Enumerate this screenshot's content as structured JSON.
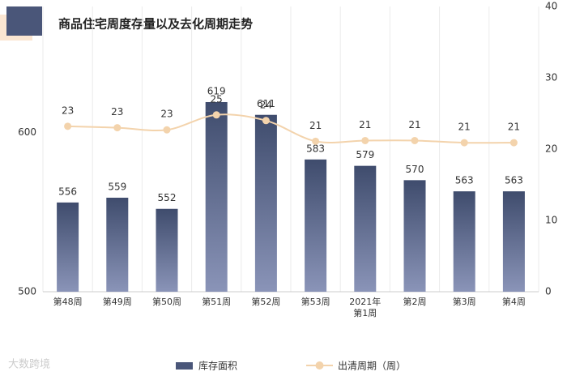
{
  "chart_data": {
    "type": "bar-line",
    "title": "商品住宅周度存量以及去化周期走势",
    "categories": [
      "第48周",
      "第49周",
      "第50周",
      "第51周",
      "第52周",
      "第53周",
      "2021年\n第1周",
      "第2周",
      "第3周",
      "第4周"
    ],
    "series": [
      {
        "name": "库存面积",
        "type": "bar",
        "color": "#44527a",
        "values": [
          556,
          559,
          552,
          619,
          611,
          583,
          579,
          570,
          563,
          563
        ]
      },
      {
        "name": "出清周期（周）",
        "type": "line",
        "axis": "y2",
        "color": "#f3d3ac",
        "values": [
          23.2,
          23.0,
          22.7,
          24.8,
          24.0,
          21.1,
          21.2,
          21.2,
          20.9,
          20.9
        ],
        "value_labels": [
          "23",
          "23",
          "23",
          "25",
          "24",
          "21",
          "21",
          "21",
          "21",
          "21"
        ]
      }
    ],
    "ylim": [
      500,
      679
    ],
    "yticks": [
      500,
      600
    ],
    "y2lim": [
      0,
      40
    ],
    "y2ticks": [
      0,
      10,
      20,
      30,
      40
    ],
    "grid": true,
    "legend": "bottom",
    "watermark": "大数跨境"
  }
}
